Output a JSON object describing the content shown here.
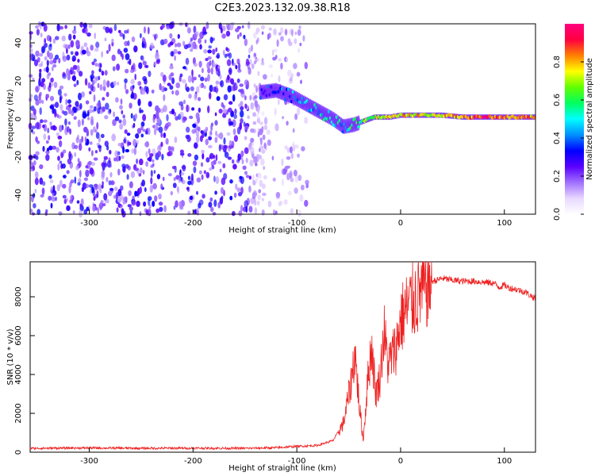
{
  "title": "C2E3.2023.132.09.38.R18",
  "chart_data": [
    {
      "type": "heatmap",
      "xlabel": "Height of straight line (km)",
      "ylabel": "Frequency (Hz)",
      "xlim": [
        -357,
        130
      ],
      "ylim": [
        -50,
        50
      ],
      "xticks": [
        -300,
        -200,
        -100,
        0,
        100
      ],
      "yticks": [
        -40,
        -20,
        0,
        20,
        40
      ],
      "colorbar": {
        "label": "Normalized spectral amplitude",
        "range": [
          0,
          1
        ],
        "ticks": [
          0.0,
          0.2,
          0.4,
          0.6,
          0.8
        ],
        "colors": [
          "#ffffff",
          "#e8d8ff",
          "#a070ff",
          "#5a00ff",
          "#0000ff",
          "#0090ff",
          "#00ffff",
          "#00ff60",
          "#60ff00",
          "#ffff00",
          "#ff8000",
          "#ff0040",
          "#ff0080"
        ]
      },
      "ridge": [
        {
          "x": -135,
          "f": 14,
          "amp": 0.35
        },
        {
          "x": -120,
          "f": 15,
          "amp": 0.35
        },
        {
          "x": -105,
          "f": 12,
          "amp": 0.4
        },
        {
          "x": -95,
          "f": 9,
          "amp": 0.4
        },
        {
          "x": -85,
          "f": 6,
          "amp": 0.45
        },
        {
          "x": -75,
          "f": 3,
          "amp": 0.5
        },
        {
          "x": -65,
          "f": 0,
          "amp": 0.5
        },
        {
          "x": -55,
          "f": -4,
          "amp": 0.45
        },
        {
          "x": -45,
          "f": -3,
          "amp": 0.6
        },
        {
          "x": -35,
          "f": -1,
          "amp": 0.65
        },
        {
          "x": -25,
          "f": 1,
          "amp": 0.7
        },
        {
          "x": -10,
          "f": 1,
          "amp": 0.75
        },
        {
          "x": 0,
          "f": 2,
          "amp": 0.8
        },
        {
          "x": 20,
          "f": 2,
          "amp": 0.75
        },
        {
          "x": 40,
          "f": 2,
          "amp": 0.75
        },
        {
          "x": 60,
          "f": 1,
          "amp": 0.8
        },
        {
          "x": 80,
          "f": 1,
          "amp": 0.9
        },
        {
          "x": 100,
          "f": 1,
          "amp": 0.8
        },
        {
          "x": 120,
          "f": 1,
          "amp": 0.85
        },
        {
          "x": 130,
          "f": 1,
          "amp": 0.75
        }
      ],
      "noise_region": {
        "x": [
          -357,
          -90
        ],
        "f": [
          -50,
          50
        ]
      }
    },
    {
      "type": "line",
      "xlabel": "Height of straight line (km)",
      "ylabel": "SNR (10 * v/v)",
      "xlim": [
        -357,
        130
      ],
      "ylim": [
        0,
        9800
      ],
      "xticks": [
        -300,
        -200,
        -100,
        0,
        100
      ],
      "yticks": [
        0,
        2000,
        4000,
        6000,
        8000
      ],
      "color": "#ee2020",
      "x": [
        -357,
        -300,
        -250,
        -200,
        -150,
        -120,
        -100,
        -80,
        -65,
        -55,
        -48,
        -44,
        -40,
        -36,
        -32,
        -28,
        -24,
        -20,
        -16,
        -12,
        -8,
        -4,
        0,
        5,
        10,
        15,
        20,
        25,
        30,
        35,
        40,
        50,
        60,
        70,
        80,
        90,
        95,
        100,
        105,
        110,
        120,
        130
      ],
      "y": [
        200,
        220,
        200,
        210,
        200,
        230,
        300,
        350,
        600,
        1500,
        3500,
        5200,
        2500,
        600,
        3500,
        5500,
        3000,
        3800,
        6200,
        4500,
        5000,
        5500,
        6800,
        7300,
        7700,
        8000,
        8300,
        8600,
        8800,
        8850,
        8950,
        8850,
        8800,
        8800,
        8750,
        8700,
        8500,
        8600,
        8450,
        8400,
        8250,
        7900
      ]
    }
  ]
}
